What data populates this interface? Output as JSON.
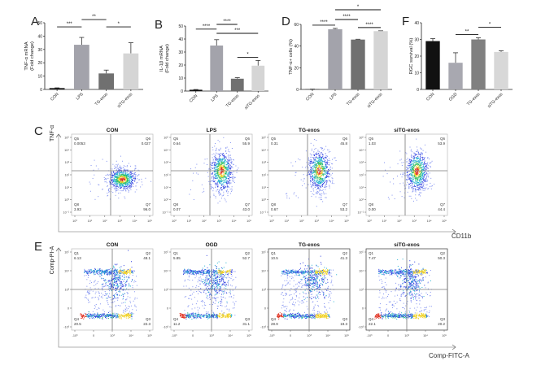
{
  "panels": {
    "A": "A",
    "B": "B",
    "C": "C",
    "D": "D",
    "E": "E",
    "F": "F"
  },
  "chart_data": [
    {
      "id": "A",
      "type": "bar",
      "ylabel": "TNF-α mRNA (Fold change)",
      "ylabel_lines": [
        "TNF-α mRNA",
        "(Fold change)"
      ],
      "categories": [
        "CON",
        "LPS",
        "TG-exos",
        "siTG-exos"
      ],
      "values": [
        1,
        33.5,
        12,
        27
      ],
      "errors": [
        0.2,
        5.5,
        2.5,
        8
      ],
      "colors": [
        "#111111",
        "#a3a3ab",
        "#707070",
        "#d5d5d5"
      ],
      "ylim": [
        0,
        50
      ],
      "yticks": [
        0,
        10,
        20,
        30,
        40,
        50
      ],
      "comparisons": [
        {
          "a": 0,
          "b": 1,
          "label": "***",
          "level": 1
        },
        {
          "a": 1,
          "b": 2,
          "label": "**",
          "level": 2
        },
        {
          "a": 2,
          "b": 3,
          "label": "*",
          "level": 1
        }
      ]
    },
    {
      "id": "B",
      "type": "bar",
      "ylabel": "IL-1β mRNA (Fold change)",
      "ylabel_lines": [
        "IL-1β mRNA",
        "(Fold change)"
      ],
      "categories": [
        "CON",
        "LPS",
        "TG-exos",
        "siTG-exos"
      ],
      "values": [
        1,
        35,
        9.5,
        19.5
      ],
      "errors": [
        0.2,
        4.5,
        0.8,
        4
      ],
      "colors": [
        "#111111",
        "#a3a3ab",
        "#707070",
        "#d5d5d5"
      ],
      "ylim": [
        0,
        50
      ],
      "yticks": [
        0,
        10,
        20,
        30,
        40,
        50
      ],
      "comparisons": [
        {
          "a": 0,
          "b": 1,
          "label": "****",
          "level": 1
        },
        {
          "a": 1,
          "b": 2,
          "label": "****",
          "level": 3
        },
        {
          "a": 1,
          "b": 3,
          "label": "***",
          "level": 2
        },
        {
          "a": 2,
          "b": 3,
          "label": "*",
          "level": 0
        }
      ]
    },
    {
      "id": "D",
      "type": "bar",
      "ylabel": "TNF-α+ cells (%)",
      "ylabel_lines": [
        "TNF-α+ cells (%)"
      ],
      "categories": [
        "CON",
        "LPS",
        "TG-exos",
        "siTG-exos"
      ],
      "values": [
        0.2,
        55.5,
        46,
        53.8
      ],
      "errors": [
        0.1,
        0.8,
        0.3,
        0.3
      ],
      "colors": [
        "#111111",
        "#a3a3ab",
        "#707070",
        "#d5d5d5"
      ],
      "ylim": [
        0,
        60
      ],
      "yticks": [
        0,
        20,
        40,
        60
      ],
      "comparisons": [
        {
          "a": 0,
          "b": 1,
          "label": "****",
          "level": 0
        },
        {
          "a": 1,
          "b": 2,
          "label": "****",
          "level": 1
        },
        {
          "a": 2,
          "b": 3,
          "label": "****",
          "level": 0
        },
        {
          "a": 1,
          "b": 3,
          "label": "*",
          "level": 2
        }
      ]
    },
    {
      "id": "F",
      "type": "bar",
      "ylabel": "RGC survival (%)",
      "ylabel_lines": [
        "RGC survival (%)"
      ],
      "categories": [
        "CON",
        "OGD",
        "TG-exos",
        "siTG-exos"
      ],
      "values": [
        29,
        16,
        30,
        22.5
      ],
      "errors": [
        1.5,
        6,
        1,
        0.7
      ],
      "colors": [
        "#111111",
        "#a8a8b0",
        "#808080",
        "#d8d8d8"
      ],
      "ylim": [
        0,
        40
      ],
      "yticks": [
        0,
        10,
        20,
        30,
        40
      ],
      "comparisons": [
        {
          "a": 1,
          "b": 2,
          "label": "**",
          "level": 0
        },
        {
          "a": 2,
          "b": 3,
          "label": "*",
          "level": 1
        }
      ]
    }
  ],
  "flow_C": {
    "y_axis": "TNF-α",
    "x_axis": "CD11b",
    "xticks": [
      "10⁰",
      "10¹",
      "10²",
      "10³",
      "10⁴",
      "10⁵"
    ],
    "yticks": [
      "10⁻¹",
      "10⁰",
      "10¹",
      "10²",
      "10³",
      "10⁴",
      "10⁵"
    ],
    "plots": [
      {
        "title": "CON",
        "q": [
          {
            "name": "Q5",
            "value": "0.0053"
          },
          {
            "name": "Q6",
            "value": "0.027"
          },
          {
            "name": "Q8",
            "value": "3.93"
          },
          {
            "name": "Q7",
            "value": "96.0"
          }
        ]
      },
      {
        "title": "LPS",
        "q": [
          {
            "name": "Q5",
            "value": "0.64"
          },
          {
            "name": "Q6",
            "value": "55.9"
          },
          {
            "name": "Q8",
            "value": "0.07"
          },
          {
            "name": "Q7",
            "value": "43.0"
          }
        ]
      },
      {
        "title": "TG-exos",
        "q": [
          {
            "name": "Q5",
            "value": "0.31"
          },
          {
            "name": "Q6",
            "value": "45.8"
          },
          {
            "name": "Q8",
            "value": "0.67"
          },
          {
            "name": "Q7",
            "value": "53.2"
          }
        ]
      },
      {
        "title": "siTG-exos",
        "q": [
          {
            "name": "Q5",
            "value": "1.03"
          },
          {
            "name": "Q6",
            "value": "53.9"
          },
          {
            "name": "Q8",
            "value": "0.00"
          },
          {
            "name": "Q7",
            "value": "44.4"
          }
        ]
      }
    ]
  },
  "flow_E": {
    "y_axis": "Comp-PI-A",
    "x_axis": "Comp-FITC-A",
    "xticks": [
      "-10³",
      "0",
      "10³",
      "10⁴",
      "10⁵"
    ],
    "yticks": [
      "-10³",
      "0",
      "10³",
      "10⁴",
      "10⁵"
    ],
    "plots": [
      {
        "title": "CON",
        "q": [
          {
            "name": "Q1",
            "value": "6.13"
          },
          {
            "name": "Q2",
            "value": "48.1"
          },
          {
            "name": "Q4",
            "value": "20.5"
          },
          {
            "name": "Q3",
            "value": "22.3"
          }
        ]
      },
      {
        "title": "OGD",
        "q": [
          {
            "name": "Q1",
            "value": "5.85"
          },
          {
            "name": "Q2",
            "value": "52.7"
          },
          {
            "name": "Q4",
            "value": "11.2"
          },
          {
            "name": "Q3",
            "value": "31.1"
          }
        ]
      },
      {
        "title": "TG-exos",
        "q": [
          {
            "name": "Q1",
            "value": "10.5"
          },
          {
            "name": "Q2",
            "value": "41.3"
          },
          {
            "name": "Q4",
            "value": "28.9"
          },
          {
            "name": "Q3",
            "value": "19.3"
          }
        ]
      },
      {
        "title": "siTG-exos",
        "q": [
          {
            "name": "Q1",
            "value": "7.47"
          },
          {
            "name": "Q2",
            "value": "50.3"
          },
          {
            "name": "Q4",
            "value": "22.1"
          },
          {
            "name": "Q3",
            "value": "20.2"
          }
        ]
      }
    ]
  }
}
